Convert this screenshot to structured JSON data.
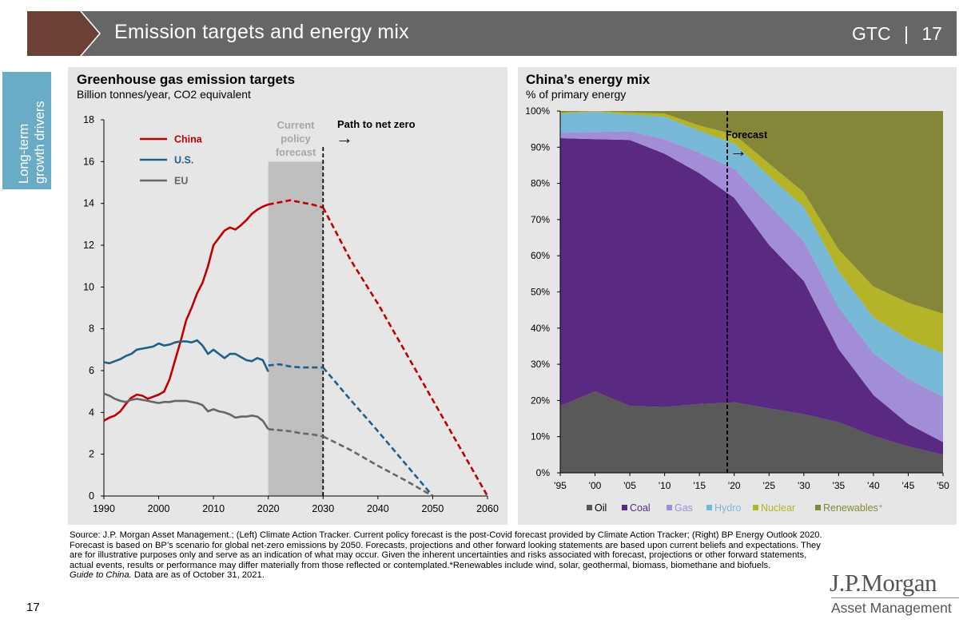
{
  "header": {
    "title": "Emission targets and energy mix",
    "brand_label": "GTC",
    "separator": "|",
    "page_number": "17",
    "colors": {
      "bar": "#666666",
      "chevron": "#6b4136"
    }
  },
  "side_tab": {
    "line1": "Long-term",
    "line2": "growth drivers",
    "color": "#6aabc6"
  },
  "left_chart": {
    "title": "Greenhouse gas emission targets",
    "subtitle": "Billion tonnes/year, CO2 equivalent",
    "shade_label_1": "Current",
    "shade_label_2": "policy",
    "shade_label_3": "forecast",
    "annotation": "Path to net zero",
    "annotation_arrow": "→"
  },
  "right_chart": {
    "title": "China’s energy mix",
    "subtitle": "% of primary energy",
    "annotation": "Forecast",
    "annotation_arrow": "→"
  },
  "chart_data": [
    {
      "type": "line",
      "title": "Greenhouse gas emission targets",
      "ylabel": "Billion tonnes/year, CO2 equivalent",
      "xlim": [
        1990,
        2060
      ],
      "ylim": [
        0,
        18
      ],
      "x_ticks": [
        "1990",
        "2000",
        "2010",
        "2020",
        "2030",
        "2040",
        "2050",
        "2060"
      ],
      "y_ticks": [
        "0",
        "2",
        "4",
        "6",
        "8",
        "10",
        "12",
        "14",
        "16",
        "18"
      ],
      "grid": false,
      "legend_position": "top-left",
      "shaded_region": {
        "x": [
          2020,
          2030
        ],
        "label": "Current policy forecast",
        "ymax": 16
      },
      "net_zero_marker": {
        "x": 2030,
        "label": "Path to net zero"
      },
      "series": [
        {
          "name": "China",
          "color": "#c00000",
          "x": [
            1990,
            1991,
            1992,
            1993,
            1994,
            1995,
            1996,
            1997,
            1998,
            1999,
            2000,
            2001,
            2002,
            2003,
            2004,
            2005,
            2006,
            2007,
            2008,
            2009,
            2010,
            2011,
            2012,
            2013,
            2014,
            2015,
            2016,
            2017,
            2018,
            2019,
            2020
          ],
          "values": [
            3.6,
            3.75,
            3.85,
            4.05,
            4.4,
            4.7,
            4.85,
            4.8,
            4.65,
            4.75,
            4.85,
            5.0,
            5.6,
            6.5,
            7.4,
            8.4,
            9.0,
            9.7,
            10.2,
            11.0,
            12.0,
            12.35,
            12.7,
            12.85,
            12.75,
            12.95,
            13.2,
            13.5,
            13.7,
            13.85,
            13.95
          ],
          "forecast_x": [
            2020,
            2022,
            2024,
            2026,
            2028,
            2030
          ],
          "forecast_values": [
            13.95,
            14.05,
            14.15,
            14.05,
            13.95,
            13.8
          ],
          "net_zero_x": [
            2030,
            2035,
            2040,
            2045,
            2050,
            2055,
            2060
          ],
          "net_zero_values": [
            13.8,
            11.3,
            9.2,
            6.9,
            4.6,
            2.3,
            0
          ]
        },
        {
          "name": "U.S.",
          "color": "#1f5f8b",
          "x": [
            1990,
            1991,
            1992,
            1993,
            1994,
            1995,
            1996,
            1997,
            1998,
            1999,
            2000,
            2001,
            2002,
            2003,
            2004,
            2005,
            2006,
            2007,
            2008,
            2009,
            2010,
            2011,
            2012,
            2013,
            2014,
            2015,
            2016,
            2017,
            2018,
            2019,
            2020
          ],
          "values": [
            6.4,
            6.35,
            6.45,
            6.55,
            6.7,
            6.8,
            7.0,
            7.05,
            7.1,
            7.15,
            7.3,
            7.2,
            7.25,
            7.35,
            7.4,
            7.4,
            7.35,
            7.45,
            7.2,
            6.8,
            7.0,
            6.8,
            6.6,
            6.8,
            6.8,
            6.65,
            6.5,
            6.45,
            6.6,
            6.5,
            5.95
          ],
          "forecast_x": [
            2020,
            2022,
            2024,
            2026,
            2028,
            2030
          ],
          "forecast_values": [
            6.25,
            6.3,
            6.2,
            6.15,
            6.15,
            6.15
          ],
          "net_zero_x": [
            2030,
            2035,
            2040,
            2045,
            2050
          ],
          "net_zero_values": [
            6.15,
            4.6,
            3.1,
            1.55,
            0
          ]
        },
        {
          "name": "EU",
          "color": "#666666",
          "x": [
            1990,
            1991,
            1992,
            1993,
            1994,
            1995,
            1996,
            1997,
            1998,
            1999,
            2000,
            2001,
            2002,
            2003,
            2004,
            2005,
            2006,
            2007,
            2008,
            2009,
            2010,
            2011,
            2012,
            2013,
            2014,
            2015,
            2016,
            2017,
            2018,
            2019,
            2020
          ],
          "values": [
            4.9,
            4.8,
            4.65,
            4.55,
            4.5,
            4.6,
            4.65,
            4.6,
            4.55,
            4.5,
            4.45,
            4.5,
            4.5,
            4.55,
            4.55,
            4.55,
            4.5,
            4.45,
            4.35,
            4.05,
            4.15,
            4.05,
            4.0,
            3.9,
            3.75,
            3.8,
            3.8,
            3.85,
            3.8,
            3.6,
            3.2
          ],
          "forecast_x": [
            2020,
            2022,
            2024,
            2026,
            2028,
            2030
          ],
          "forecast_values": [
            3.2,
            3.15,
            3.1,
            3.0,
            2.95,
            2.85
          ],
          "net_zero_x": [
            2030,
            2035,
            2040,
            2045,
            2050
          ],
          "net_zero_values": [
            2.85,
            2.2,
            1.45,
            0.75,
            0
          ]
        }
      ]
    },
    {
      "type": "area",
      "title": "China’s energy mix",
      "ylabel": "% of primary energy",
      "stacked": true,
      "xlim": [
        1995,
        2050
      ],
      "ylim": [
        0,
        100
      ],
      "categories": [
        "'95",
        "'00",
        "'05",
        "'10",
        "'15",
        "'20",
        "'25",
        "'30",
        "'35",
        "'40",
        "'45",
        "'50"
      ],
      "x_years": [
        1995,
        2000,
        2005,
        2010,
        2015,
        2020,
        2025,
        2030,
        2035,
        2040,
        2045,
        2050
      ],
      "y_ticks": [
        "0%",
        "10%",
        "20%",
        "30%",
        "40%",
        "50%",
        "60%",
        "70%",
        "80%",
        "90%",
        "100%"
      ],
      "grid": false,
      "legend_position": "bottom",
      "forecast_marker": {
        "x": 2019,
        "label": "Forecast"
      },
      "series": [
        {
          "name": "Oil",
          "color": "#595959",
          "values": [
            18.5,
            22.5,
            18.5,
            18.2,
            19.0,
            19.5,
            17.8,
            16.2,
            14.0,
            10.2,
            7.3,
            5.0
          ]
        },
        {
          "name": "Coal",
          "color": "#5a2a82",
          "values": [
            74.0,
            69.7,
            73.5,
            70.0,
            63.8,
            56.5,
            45.2,
            36.8,
            20.2,
            11.3,
            6.2,
            3.5
          ]
        },
        {
          "name": "Gas",
          "color": "#a18ed6",
          "values": [
            1.5,
            2.0,
            2.4,
            4.0,
            5.7,
            8.0,
            11.0,
            11.0,
            11.5,
            11.5,
            12.5,
            12.5
          ]
        },
        {
          "name": "Hydro",
          "color": "#78b9d8",
          "values": [
            5.3,
            5.6,
            4.6,
            6.2,
            6.0,
            7.0,
            8.0,
            9.5,
            10.0,
            10.0,
            11.0,
            12.0
          ]
        },
        {
          "name": "Nuclear",
          "color": "#b5b428",
          "values": [
            0.3,
            0.2,
            0.6,
            0.9,
            1.5,
            2.5,
            3.5,
            4.0,
            6.0,
            8.5,
            10.0,
            11.0
          ]
        },
        {
          "name": "Renewables⁺",
          "color": "#858738",
          "values": [
            0.4,
            0.0,
            0.4,
            0.7,
            4.0,
            6.5,
            14.5,
            22.5,
            38.3,
            48.5,
            53.0,
            56.0
          ]
        }
      ]
    }
  ],
  "footer": {
    "source": "Source: J.P. Morgan Asset Management.; (Left) Climate Action Tracker. Current policy forecast is the post-Covid forecast provided by Climate Action Tracker; (Right) BP Energy Outlook 2020. Forecast is based on BP’s scenario for global net-zero emissions by 2050. Forecasts, projections and other forward looking statements are based upon current beliefs and expectations. They are for illustrative purposes only and serve as an indication of what may occur. Given the inherent uncertainties and risks associated with forecast, projections or other forward statements, actual events, results or performance may differ materially from those reflected or contemplated.*Renewables include wind, solar, geothermal, biomass, biomethane and biofuels.",
    "guide": "Guide to China.",
    "date_note": " Data are as of October 31, 2021.",
    "page_number": "17"
  },
  "logo": {
    "line1": "J.P.Morgan",
    "line2": "Asset Management"
  }
}
